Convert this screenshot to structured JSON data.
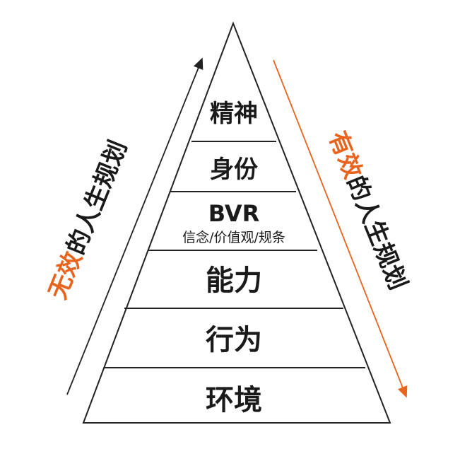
{
  "pyramid": {
    "levels": [
      {
        "label": "精神"
      },
      {
        "label": "身份"
      },
      {
        "label": "BVR",
        "sublabel": "信念/价值观/规条"
      },
      {
        "label": "能力"
      },
      {
        "label": "行为"
      },
      {
        "label": "环境"
      }
    ]
  },
  "left_arrow": {
    "label_highlight": "无效",
    "label_rest": "的人生规划",
    "direction": "up"
  },
  "right_arrow": {
    "label_highlight": "有效",
    "label_rest": "的人生规划",
    "direction": "down"
  },
  "colors": {
    "accent": "#e8641e",
    "text": "#1a1a1a",
    "line": "#222222"
  }
}
